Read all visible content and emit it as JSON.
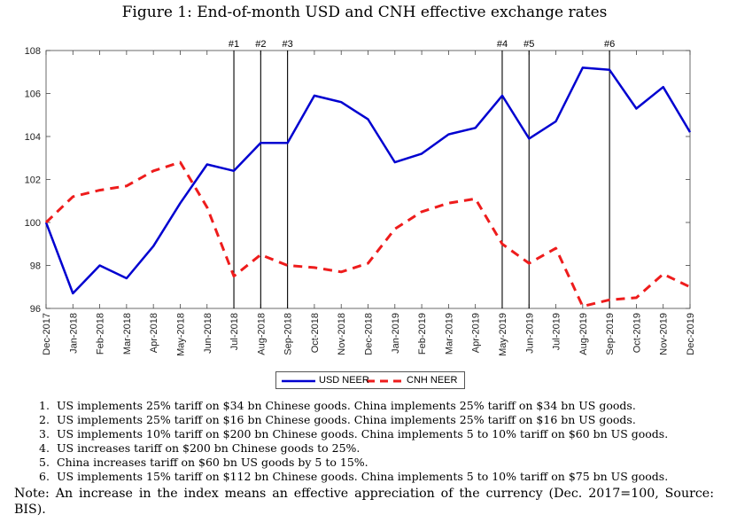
{
  "figure_title": "Figure 1: End-of-month USD and CNH effective exchange rates",
  "chart_data": {
    "type": "line",
    "title": "Figure 1: End-of-month USD and CNH effective exchange rates",
    "xlabel": "",
    "ylabel": "",
    "categories": [
      "Dec-2017",
      "Jan-2018",
      "Feb-2018",
      "Mar-2018",
      "Apr-2018",
      "May-2018",
      "Jun-2018",
      "Jul-2018",
      "Aug-2018",
      "Sep-2018",
      "Oct-2018",
      "Nov-2018",
      "Dec-2018",
      "Jan-2019",
      "Feb-2019",
      "Mar-2019",
      "Apr-2019",
      "May-2019",
      "Jun-2019",
      "Jul-2019",
      "Aug-2019",
      "Sep-2019",
      "Oct-2019",
      "Nov-2019",
      "Dec-2019"
    ],
    "ylim": [
      96,
      108
    ],
    "yticks": [
      "96",
      "98",
      "100",
      "102",
      "104",
      "106",
      "108"
    ],
    "grid": false,
    "legend_position": "bottom-center",
    "series": [
      {
        "name": "USD NEER",
        "color": "#0000d0",
        "style": "solid",
        "values": [
          100.0,
          96.7,
          98.0,
          97.4,
          98.9,
          100.9,
          102.7,
          102.4,
          103.7,
          103.7,
          105.9,
          105.6,
          104.8,
          102.8,
          103.2,
          104.1,
          104.4,
          105.9,
          103.9,
          104.7,
          107.2,
          107.1,
          105.3,
          106.3,
          104.2
        ]
      },
      {
        "name": "CNH NEER",
        "color": "#ee1c1c",
        "style": "dashed",
        "values": [
          100.0,
          101.2,
          101.5,
          101.7,
          102.4,
          102.8,
          100.7,
          97.5,
          98.5,
          98.0,
          97.9,
          97.7,
          98.1,
          99.7,
          100.5,
          100.9,
          101.1,
          99.0,
          98.1,
          98.8,
          96.1,
          96.4,
          96.5,
          97.6,
          97.0
        ]
      }
    ],
    "events": [
      {
        "label": "#1",
        "x": "Jul-2018"
      },
      {
        "label": "#2",
        "x": "Aug-2018"
      },
      {
        "label": "#3",
        "x": "Sep-2018"
      },
      {
        "label": "#4",
        "x": "May-2019"
      },
      {
        "label": "#5",
        "x": "Jun-2019"
      },
      {
        "label": "#6",
        "x": "Sep-2019"
      }
    ]
  },
  "notes": [
    {
      "num": "1.",
      "text": "US implements 25% tariff on $34 bn Chinese goods. China implements 25% tariff on $34 bn US goods."
    },
    {
      "num": "2.",
      "text": "US implements 25% tariff on $16 bn Chinese goods. China implements 25% tariff on $16 bn US goods."
    },
    {
      "num": "3.",
      "text": "US implements 10% tariff on $200 bn Chinese goods. China implements 5 to 10% tariff on $60 bn US goods."
    },
    {
      "num": "4.",
      "text": "US increases tariff on $200 bn Chinese goods to 25%."
    },
    {
      "num": "5.",
      "text": "China increases tariff on $60 bn US goods by 5 to 15%."
    },
    {
      "num": "6.",
      "text": "US implements 15% tariff on $112 bn Chinese goods. China implements 5 to 10% tariff on $75 bn US goods."
    }
  ],
  "footnote": "Note: An increase in the index means an effective appreciation of the currency (Dec. 2017=100, Source: BIS)."
}
